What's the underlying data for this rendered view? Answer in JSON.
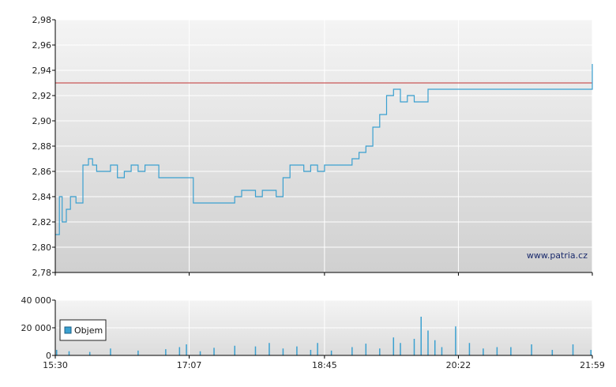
{
  "watermark": "www.patria.cz",
  "colors": {
    "line": "#3aa0d0",
    "reference": "#c03030",
    "volume": "#3aa0d0",
    "bg_top": "#f4f4f4",
    "bg_bottom": "#d0d0d0",
    "grid": "#ffffff",
    "axis": "#000000"
  },
  "chart_data": [
    {
      "type": "line",
      "title": "",
      "xlabel": "",
      "ylabel": "",
      "ylim": [
        2.78,
        2.98
      ],
      "xlim": [
        "15:30",
        "21:59"
      ],
      "x_ticks": [
        "15:30",
        "17:07",
        "18:45",
        "20:22",
        "21:59"
      ],
      "y_ticks": [
        "2,78",
        "2,80",
        "2,82",
        "2,84",
        "2,86",
        "2,88",
        "2,90",
        "2,92",
        "2,94",
        "2,96",
        "2,98"
      ],
      "y_tick_values": [
        2.78,
        2.8,
        2.82,
        2.84,
        2.86,
        2.88,
        2.9,
        2.92,
        2.94,
        2.96,
        2.98
      ],
      "grid": true,
      "reference_line": 2.93,
      "series": [
        {
          "x": [
            "15:30",
            "15:33",
            "15:35",
            "15:38",
            "15:41",
            "15:45",
            "15:50",
            "15:54",
            "15:57",
            "16:00",
            "16:05",
            "16:10",
            "16:15",
            "16:20",
            "16:25",
            "16:30",
            "16:35",
            "16:40",
            "16:45",
            "16:50",
            "16:55",
            "17:00",
            "17:05",
            "17:10",
            "17:15",
            "17:20",
            "17:25",
            "17:30",
            "17:35",
            "17:40",
            "17:45",
            "17:50",
            "17:55",
            "18:00",
            "18:05",
            "18:10",
            "18:15",
            "18:20",
            "18:25",
            "18:30",
            "18:35",
            "18:40",
            "18:45",
            "18:50",
            "18:55",
            "19:00",
            "19:05",
            "19:10",
            "19:15",
            "19:20",
            "19:25",
            "19:30",
            "19:35",
            "19:40",
            "19:45",
            "19:50",
            "19:55",
            "20:00",
            "20:05",
            "20:10",
            "20:15",
            "20:20",
            "20:25",
            "20:30",
            "20:35",
            "20:40",
            "20:45",
            "20:50",
            "20:55",
            "21:00",
            "21:05",
            "21:10",
            "21:15",
            "21:20",
            "21:25",
            "21:30",
            "21:35",
            "21:40",
            "21:45",
            "21:50",
            "21:55",
            "21:59"
          ],
          "values": [
            2.81,
            2.84,
            2.82,
            2.83,
            2.84,
            2.835,
            2.865,
            2.87,
            2.865,
            2.86,
            2.86,
            2.865,
            2.855,
            2.86,
            2.865,
            2.86,
            2.865,
            2.865,
            2.855,
            2.855,
            2.855,
            2.855,
            2.855,
            2.835,
            2.835,
            2.835,
            2.835,
            2.835,
            2.835,
            2.84,
            2.845,
            2.845,
            2.84,
            2.845,
            2.845,
            2.84,
            2.855,
            2.865,
            2.865,
            2.86,
            2.865,
            2.86,
            2.865,
            2.865,
            2.865,
            2.865,
            2.87,
            2.875,
            2.88,
            2.895,
            2.905,
            2.92,
            2.925,
            2.915,
            2.92,
            2.915,
            2.915,
            2.925,
            2.925,
            2.925,
            2.925,
            2.925,
            2.925,
            2.925,
            2.925,
            2.925,
            2.925,
            2.925,
            2.925,
            2.925,
            2.925,
            2.925,
            2.925,
            2.925,
            2.925,
            2.925,
            2.925,
            2.925,
            2.925,
            2.925,
            2.925,
            2.945
          ]
        }
      ]
    },
    {
      "type": "bar",
      "title": "",
      "xlabel": "",
      "ylabel": "",
      "ylim": [
        0,
        40000
      ],
      "y_ticks": [
        "0",
        "20 000",
        "40 000"
      ],
      "y_tick_values": [
        0,
        20000,
        40000
      ],
      "grid": true,
      "legend": {
        "placement": "left",
        "entries": [
          "Objem"
        ]
      },
      "series": [
        {
          "name": "Objem",
          "x": [
            "15:31",
            "15:40",
            "15:55",
            "16:10",
            "16:30",
            "16:50",
            "17:00",
            "17:05",
            "17:15",
            "17:25",
            "17:40",
            "17:55",
            "18:05",
            "18:15",
            "18:25",
            "18:35",
            "18:40",
            "18:50",
            "19:05",
            "19:15",
            "19:25",
            "19:35",
            "19:40",
            "19:50",
            "19:55",
            "20:00",
            "20:05",
            "20:10",
            "20:20",
            "20:30",
            "20:40",
            "20:50",
            "21:00",
            "21:15",
            "21:30",
            "21:45",
            "21:58"
          ],
          "values": [
            4000,
            3000,
            2500,
            5000,
            3500,
            4500,
            6000,
            8000,
            3000,
            5500,
            7000,
            6500,
            9000,
            5000,
            6500,
            4000,
            9000,
            3500,
            6000,
            8500,
            5000,
            13000,
            9000,
            12000,
            28000,
            18000,
            11000,
            6000,
            21000,
            9000,
            5000,
            6000,
            6000,
            8000,
            4000,
            8000,
            4000
          ]
        }
      ]
    }
  ]
}
